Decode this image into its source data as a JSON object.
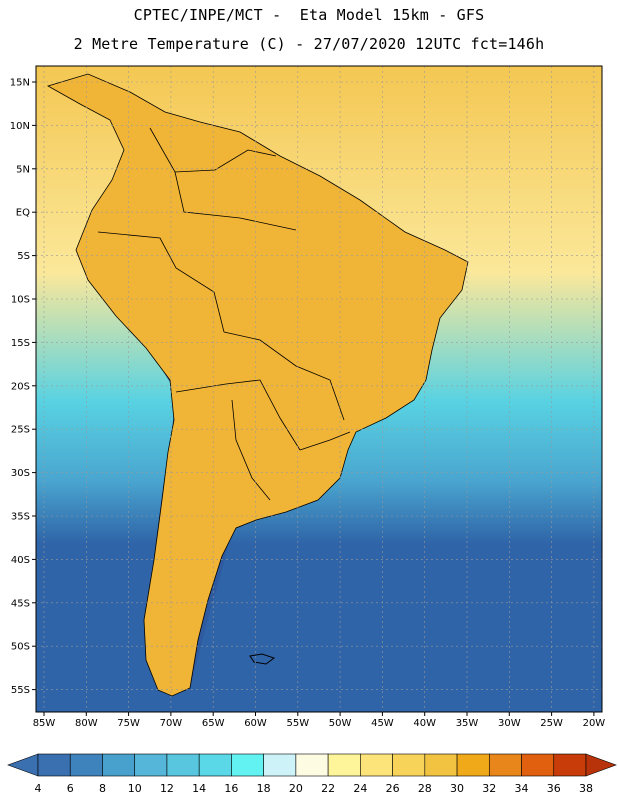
{
  "title_line1": "CPTEC/INPE/MCT -  Eta Model 15km - GFS",
  "title_line2": "2 Metre Temperature (C) - 27/07/2020 12UTC fct=146h",
  "lat_labels": [
    "15N",
    "10N",
    "5N",
    "EQ",
    "5S",
    "10S",
    "15S",
    "20S",
    "25S",
    "30S",
    "35S",
    "40S",
    "45S",
    "50S",
    "55S"
  ],
  "lon_labels": [
    "85W",
    "80W",
    "75W",
    "70W",
    "65W",
    "60W",
    "55W",
    "50W",
    "45W",
    "40W",
    "35W",
    "30W",
    "25W",
    "20W"
  ],
  "colorbar": {
    "labels": [
      "4",
      "6",
      "8",
      "10",
      "12",
      "14",
      "16",
      "18",
      "20",
      "22",
      "24",
      "26",
      "28",
      "30",
      "32",
      "34",
      "36",
      "38"
    ],
    "colors": [
      "#3a6fb0",
      "#3f83bd",
      "#48a0cc",
      "#55b6d9",
      "#57c6de",
      "#5ad8e8",
      "#63f2f2",
      "#cdf2f7",
      "#fefbe3",
      "#fef59a",
      "#fde47a",
      "#f8d35a",
      "#f1c340",
      "#f0a919",
      "#e8861c",
      "#e06010",
      "#c83c0a"
    ],
    "low_arrow_color": "#3a6fb0",
    "high_arrow_color": "#b8320a"
  },
  "map_colors": {
    "ocean_cold": "#2f64a8",
    "ocean_cool": "#4aa6d0",
    "ocean_mild": "#58d2e2",
    "ocean_warm": "#fbe89a",
    "ocean_tropical": "#f4c752",
    "land_warm": "#f0b437",
    "land_hot": "#eea12a",
    "andes": "#2e5aa0"
  }
}
